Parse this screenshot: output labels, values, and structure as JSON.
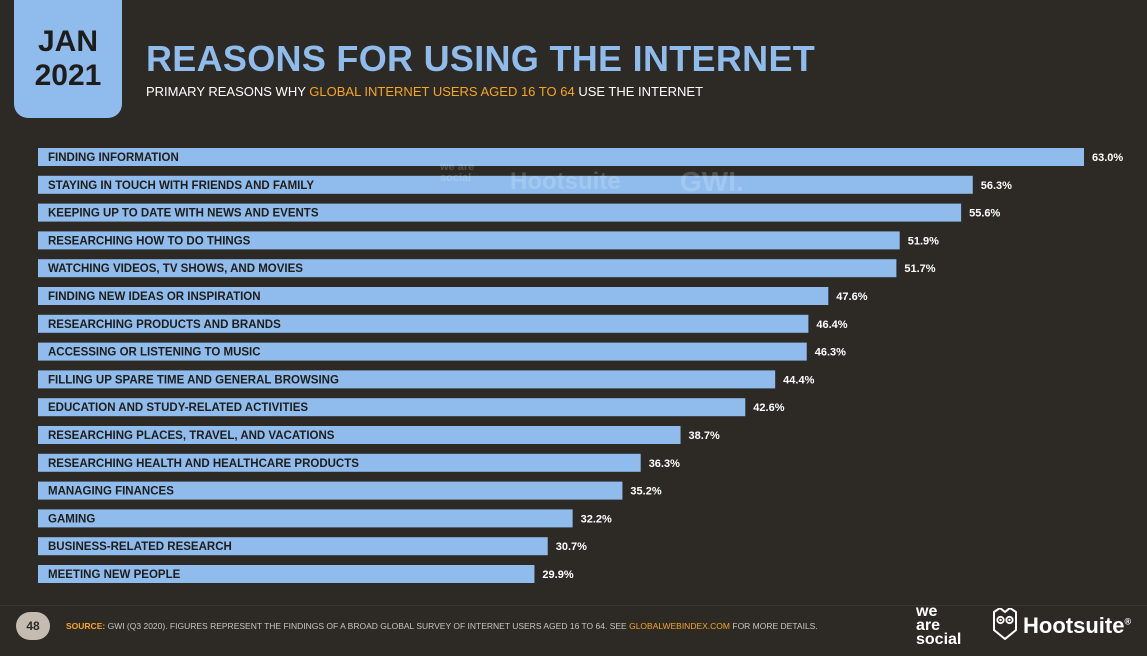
{
  "header": {
    "month": "JAN",
    "year": "2021",
    "title": "REASONS FOR USING THE INTERNET",
    "subtitle_prefix": "PRIMARY REASONS WHY",
    "subtitle_highlight": "GLOBAL INTERNET USERS AGED 16 TO 64",
    "subtitle_suffix": "USE THE INTERNET"
  },
  "watermark": {
    "we_are_social": "we are social",
    "hootsuite": "Hootsuite",
    "gwi": "GWI."
  },
  "footer": {
    "page_number": "48",
    "source_label": "SOURCE:",
    "source_text": "GWI (Q3 2020). FIGURES REPRESENT THE FINDINGS OF A BROAD GLOBAL SURVEY OF INTERNET USERS AGED 16 TO 64. SEE",
    "source_link": "GLOBALWEBINDEX.COM",
    "source_tail": "FOR MORE DETAILS.",
    "brand_we_are_social": [
      "we",
      "are",
      "social"
    ],
    "brand_hootsuite": "Hootsuite",
    "brand_hootsuite_mark": "®"
  },
  "colors": {
    "background": "#2d2a26",
    "bar": "#8fbcec",
    "accent": "#f5a623",
    "text": "#ffffff"
  },
  "chart_data": {
    "type": "bar",
    "orientation": "horizontal",
    "categories": [
      "FINDING INFORMATION",
      "STAYING IN TOUCH WITH FRIENDS AND FAMILY",
      "KEEPING UP TO DATE WITH NEWS AND EVENTS",
      "RESEARCHING HOW TO DO THINGS",
      "WATCHING VIDEOS, TV SHOWS, AND MOVIES",
      "FINDING NEW IDEAS OR INSPIRATION",
      "RESEARCHING PRODUCTS AND BRANDS",
      "ACCESSING OR LISTENING TO MUSIC",
      "FILLING UP SPARE TIME AND GENERAL BROWSING",
      "EDUCATION AND STUDY-RELATED ACTIVITIES",
      "RESEARCHING PLACES, TRAVEL, AND VACATIONS",
      "RESEARCHING HEALTH AND HEALTHCARE PRODUCTS",
      "MANAGING FINANCES",
      "GAMING",
      "BUSINESS-RELATED RESEARCH",
      "MEETING NEW PEOPLE"
    ],
    "values": [
      63.0,
      56.3,
      55.6,
      51.9,
      51.7,
      47.6,
      46.4,
      46.3,
      44.4,
      42.6,
      38.7,
      36.3,
      35.2,
      32.2,
      30.7,
      29.9
    ],
    "value_labels": [
      "63.0%",
      "56.3%",
      "55.6%",
      "51.9%",
      "51.7%",
      "47.6%",
      "46.4%",
      "46.3%",
      "44.4%",
      "42.6%",
      "38.7%",
      "36.3%",
      "35.2%",
      "32.2%",
      "30.7%",
      "29.9%"
    ],
    "xlim": [
      0,
      63.0
    ],
    "grid": false,
    "legend": "none"
  }
}
